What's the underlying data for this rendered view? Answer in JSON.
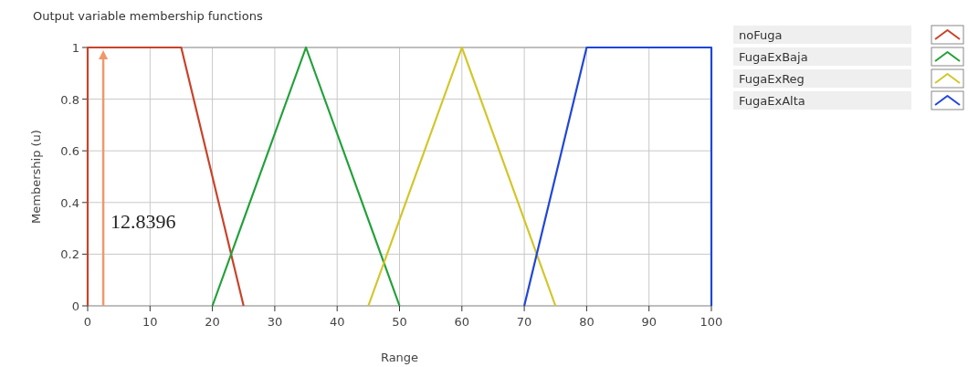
{
  "chart_data": {
    "type": "line",
    "title": "Output variable membership functions",
    "xlabel": "Range",
    "ylabel": "Membership (u)",
    "series": [
      {
        "name": "noFuga",
        "color": "#c8432a",
        "x": [
          0,
          0,
          15,
          25
        ],
        "values": [
          0,
          1,
          1,
          0
        ]
      },
      {
        "name": "FugaExBaja",
        "color": "#23a03a",
        "x": [
          20,
          35,
          50
        ],
        "values": [
          0,
          1,
          0
        ]
      },
      {
        "name": "FugaExReg",
        "color": "#d2c62a",
        "x": [
          45,
          60,
          75
        ],
        "values": [
          0,
          1,
          0
        ]
      },
      {
        "name": "FugaExAlta",
        "color": "#2046d8",
        "x": [
          70,
          80,
          100,
          100
        ],
        "values": [
          0,
          1,
          1,
          0
        ]
      }
    ],
    "ref_lines": [
      {
        "axis": "x",
        "value": 2.5,
        "color": "#f0986a"
      }
    ],
    "annotations": [
      "12.8396"
    ],
    "xlim": [
      0,
      100
    ],
    "ylim": [
      0,
      1
    ],
    "xticks": [
      0,
      10,
      20,
      30,
      40,
      50,
      60,
      70,
      80,
      90,
      100
    ],
    "yticks": [
      0,
      {
        "value": 0.2,
        "label": "0.2"
      },
      {
        "value": 0.4,
        "label": "0.4"
      },
      {
        "value": 0.6,
        "label": "0.6"
      },
      {
        "value": 0.8,
        "label": "0.8"
      },
      1
    ],
    "grid": true,
    "legend": "right",
    "marker": "none",
    "line_style": "solid"
  }
}
